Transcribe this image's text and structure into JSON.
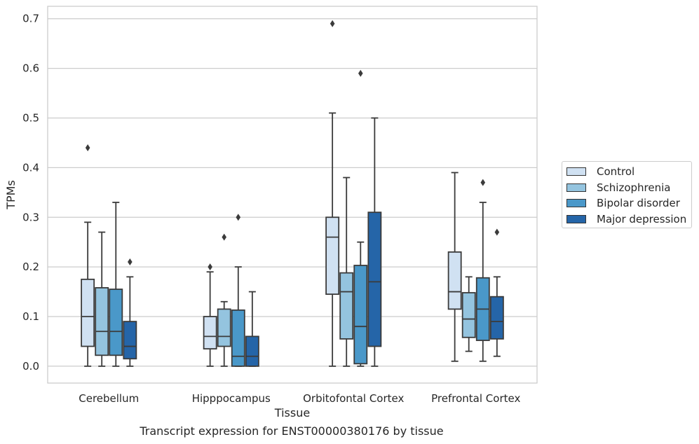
{
  "caption": "Transcript expression for ENST00000380176 by tissue",
  "chart_data": {
    "type": "box",
    "xlabel": "Tissue",
    "ylabel": "TPMs",
    "ylim": [
      -0.034,
      0.725
    ],
    "yticks": [
      0.0,
      0.1,
      0.2,
      0.3,
      0.4,
      0.5,
      0.6,
      0.7
    ],
    "ytick_labels": [
      "0.0",
      "0.1",
      "0.2",
      "0.3",
      "0.4",
      "0.5",
      "0.6",
      "0.7"
    ],
    "grid": "horizontal",
    "legend_position": "right, outside plot",
    "categories": [
      "Cerebellum",
      "Hipppocampus",
      "Orbitofontal Cortex",
      "Prefrontal Cortex"
    ],
    "series": [
      {
        "name": "Control",
        "color": "#d0e1f2",
        "boxes": [
          {
            "whisker_low": 0.0,
            "q1": 0.04,
            "median": 0.1,
            "q3": 0.175,
            "whisker_high": 0.29,
            "outliers": [
              0.44
            ]
          },
          {
            "whisker_low": 0.0,
            "q1": 0.035,
            "median": 0.06,
            "q3": 0.1,
            "whisker_high": 0.19,
            "outliers": [
              0.2
            ]
          },
          {
            "whisker_low": 0.0,
            "q1": 0.145,
            "median": 0.26,
            "q3": 0.3,
            "whisker_high": 0.51,
            "outliers": [
              0.69
            ]
          },
          {
            "whisker_low": 0.01,
            "q1": 0.115,
            "median": 0.15,
            "q3": 0.23,
            "whisker_high": 0.39,
            "outliers": []
          }
        ]
      },
      {
        "name": "Schizophrenia",
        "color": "#94c4df",
        "boxes": [
          {
            "whisker_low": 0.0,
            "q1": 0.022,
            "median": 0.07,
            "q3": 0.158,
            "whisker_high": 0.27,
            "outliers": []
          },
          {
            "whisker_low": 0.0,
            "q1": 0.04,
            "median": 0.06,
            "q3": 0.115,
            "whisker_high": 0.13,
            "outliers": [
              0.26
            ]
          },
          {
            "whisker_low": 0.0,
            "q1": 0.055,
            "median": 0.15,
            "q3": 0.188,
            "whisker_high": 0.38,
            "outliers": []
          },
          {
            "whisker_low": 0.03,
            "q1": 0.058,
            "median": 0.095,
            "q3": 0.148,
            "whisker_high": 0.18,
            "outliers": []
          }
        ]
      },
      {
        "name": "Bipolar disorder",
        "color": "#4a98c9",
        "boxes": [
          {
            "whisker_low": 0.0,
            "q1": 0.022,
            "median": 0.07,
            "q3": 0.155,
            "whisker_high": 0.33,
            "outliers": []
          },
          {
            "whisker_low": 0.0,
            "q1": 0.0,
            "median": 0.02,
            "q3": 0.113,
            "whisker_high": 0.2,
            "outliers": [
              0.3
            ]
          },
          {
            "whisker_low": 0.0,
            "q1": 0.005,
            "median": 0.08,
            "q3": 0.203,
            "whisker_high": 0.25,
            "outliers": [
              0.59
            ]
          },
          {
            "whisker_low": 0.01,
            "q1": 0.052,
            "median": 0.115,
            "q3": 0.178,
            "whisker_high": 0.33,
            "outliers": [
              0.37
            ]
          }
        ]
      },
      {
        "name": "Major depression",
        "color": "#2565a8",
        "boxes": [
          {
            "whisker_low": 0.0,
            "q1": 0.015,
            "median": 0.04,
            "q3": 0.09,
            "whisker_high": 0.18,
            "outliers": [
              0.21
            ]
          },
          {
            "whisker_low": 0.0,
            "q1": 0.0,
            "median": 0.02,
            "q3": 0.06,
            "whisker_high": 0.15,
            "outliers": []
          },
          {
            "whisker_low": 0.0,
            "q1": 0.04,
            "median": 0.17,
            "q3": 0.31,
            "whisker_high": 0.5,
            "outliers": []
          },
          {
            "whisker_low": 0.02,
            "q1": 0.055,
            "median": 0.09,
            "q3": 0.14,
            "whisker_high": 0.18,
            "outliers": [
              0.27
            ]
          }
        ]
      }
    ]
  }
}
